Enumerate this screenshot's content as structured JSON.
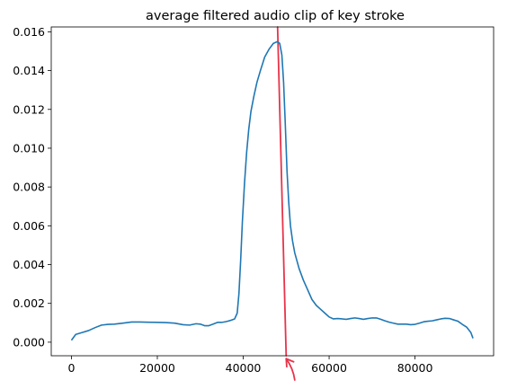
{
  "chart_data": {
    "type": "line",
    "title": "average filtered audio clip of key stroke",
    "xlabel": "",
    "ylabel": "",
    "xlim": [
      -4700,
      98300
    ],
    "ylim": [
      -0.0007,
      0.01625
    ],
    "xticks": [
      0,
      20000,
      40000,
      60000,
      80000
    ],
    "xtick_labels": [
      "0",
      "20000",
      "40000",
      "60000",
      "80000"
    ],
    "yticks": [
      0.0,
      0.002,
      0.004,
      0.006,
      0.008,
      0.01,
      0.012,
      0.014,
      0.016
    ],
    "ytick_labels": [
      "0.000",
      "0.002",
      "0.004",
      "0.006",
      "0.008",
      "0.010",
      "0.012",
      "0.014",
      "0.016"
    ],
    "grid": false,
    "series": [
      {
        "color": "#1f77b4",
        "x": [
          0,
          1000,
          2500,
          4000,
          5500,
          7000,
          8500,
          10000,
          12000,
          14000,
          16000,
          18000,
          20000,
          22000,
          24000,
          26000,
          27500,
          29000,
          30000,
          31000,
          32000,
          33000,
          34000,
          35000,
          36000,
          37000,
          38000,
          38600,
          39000,
          39400,
          39800,
          40300,
          40800,
          41300,
          41800,
          42500,
          43200,
          44000,
          45000,
          46000,
          47000,
          48000,
          48500,
          49000,
          49400,
          49800,
          50200,
          50600,
          51000,
          51500,
          52000,
          53000,
          54000,
          55000,
          56000,
          57000,
          58000,
          59000,
          60000,
          61000,
          62000,
          63000,
          64000,
          65000,
          66000,
          67000,
          68000,
          69000,
          70000,
          71000,
          72000,
          73000,
          74000,
          75000,
          76000,
          77000,
          78000,
          79000,
          80000,
          81000,
          82000,
          83000,
          84000,
          85000,
          86000,
          87000,
          88000,
          89000,
          90000,
          91000,
          92000,
          93000,
          93500
        ],
        "y": [
          0.0001,
          0.0004,
          0.0005,
          0.0006,
          0.00075,
          0.00088,
          0.00092,
          0.00093,
          0.00098,
          0.00104,
          0.00104,
          0.00103,
          0.00102,
          0.00101,
          0.00098,
          0.0009,
          0.00088,
          0.00095,
          0.00093,
          0.00085,
          0.00085,
          0.00093,
          0.00102,
          0.00102,
          0.00106,
          0.00112,
          0.0012,
          0.0015,
          0.0025,
          0.0042,
          0.0062,
          0.0082,
          0.0098,
          0.011,
          0.0119,
          0.0127,
          0.0134,
          0.014,
          0.0147,
          0.0151,
          0.0154,
          0.0155,
          0.0154,
          0.0148,
          0.0134,
          0.0112,
          0.0088,
          0.0072,
          0.006,
          0.0052,
          0.0046,
          0.0038,
          0.0032,
          0.0027,
          0.0022,
          0.0019,
          0.0017,
          0.0015,
          0.0013,
          0.0012,
          0.00122,
          0.0012,
          0.00118,
          0.00122,
          0.00125,
          0.00122,
          0.00118,
          0.00122,
          0.00125,
          0.00125,
          0.00118,
          0.0011,
          0.00103,
          0.00098,
          0.00093,
          0.00093,
          0.00093,
          0.0009,
          0.00092,
          0.00098,
          0.00105,
          0.00108,
          0.0011,
          0.00115,
          0.0012,
          0.00123,
          0.00122,
          0.00115,
          0.00108,
          0.00092,
          0.00078,
          0.0005,
          0.0002
        ]
      }
    ],
    "annotation": {
      "color": "#e8334a",
      "line": {
        "x1": 48000,
        "y1": 0.01625,
        "x2": 50000,
        "y2": -0.0007
      },
      "arrow": {
        "tail": [
          52000,
          -0.00195
        ],
        "head": [
          50000,
          -0.00085
        ]
      }
    }
  }
}
